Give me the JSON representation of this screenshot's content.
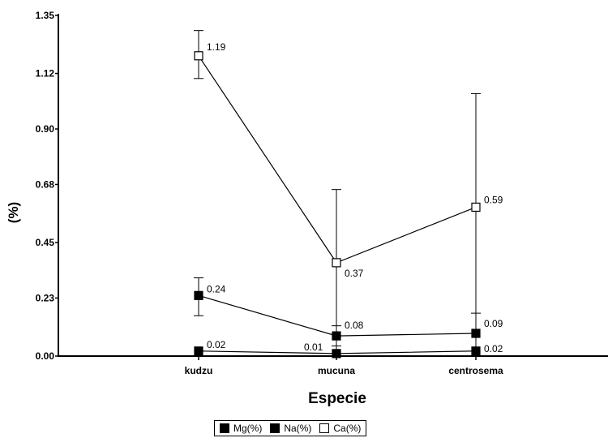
{
  "chart_data": {
    "type": "line",
    "title": "",
    "xlabel": "Especie",
    "ylabel": "(%)",
    "categories": [
      "kudzu",
      "mucuna",
      "centrosema"
    ],
    "yticks": [
      "0.00",
      "0.23",
      "0.45",
      "0.68",
      "0.90",
      "1.12",
      "1.35"
    ],
    "ylim": [
      0,
      1.35
    ],
    "grid": false,
    "legend_position": "bottom",
    "series": [
      {
        "name": "Mg(%)",
        "marker": "filled-square",
        "color": "#000000",
        "values": [
          0.24,
          0.08,
          0.09
        ],
        "labels": [
          "0.24",
          "0.08",
          "0.09"
        ],
        "error_low": [
          0.16,
          0.04,
          0.0
        ],
        "error_high": [
          0.31,
          0.12,
          0.17
        ]
      },
      {
        "name": "Na(%)",
        "marker": "filled-square",
        "color": "#000000",
        "values": [
          0.02,
          0.01,
          0.02
        ],
        "labels": [
          "0.02",
          "0.01",
          "0.02"
        ],
        "error_low": [
          null,
          null,
          null
        ],
        "error_high": [
          null,
          null,
          null
        ]
      },
      {
        "name": "Ca(%)",
        "marker": "open-square",
        "color": "#000000",
        "values": [
          1.19,
          0.37,
          0.59
        ],
        "labels": [
          "1.19",
          "0.37",
          "0.59"
        ],
        "error_low": [
          1.1,
          0.0,
          0.0
        ],
        "error_high": [
          1.29,
          0.66,
          1.04
        ]
      }
    ]
  }
}
